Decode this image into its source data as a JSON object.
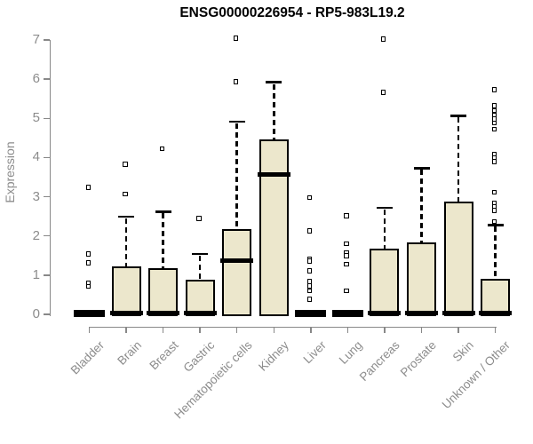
{
  "chart_data": {
    "type": "boxplot",
    "title": "ENSG00000226954 - RP5-983L19.2",
    "ylabel": "Expression",
    "xlabel": "",
    "ylim": [
      0,
      7
    ],
    "yticks": [
      0,
      1,
      2,
      3,
      4,
      5,
      6,
      7
    ],
    "grid": false,
    "legend": "none",
    "colors": {
      "box_fill": "#ECE7CC",
      "box_stroke": "#000000",
      "axis": "#888888",
      "tick_label": "#8c8c8c",
      "title": "#000000"
    },
    "categories": [
      {
        "label": "Bladder",
        "q1": 0,
        "median": 0.03,
        "q3": 0.07,
        "whisker_high": null,
        "outliers": [
          3.24,
          1.54,
          1.31,
          0.79,
          0.71
        ]
      },
      {
        "label": "Brain",
        "q1": 0,
        "median": 0.03,
        "q3": 1.22,
        "whisker_high": 2.49,
        "outliers": [
          3.83,
          3.07
        ]
      },
      {
        "label": "Breast",
        "q1": 0,
        "median": 0.03,
        "q3": 1.17,
        "whisker_high": 2.62,
        "outliers": [
          4.23
        ]
      },
      {
        "label": "Gastric",
        "q1": 0,
        "median": 0.03,
        "q3": 0.89,
        "whisker_high": 1.54,
        "outliers": [
          2.45
        ]
      },
      {
        "label": "Hematopoietic cells",
        "q1": 0,
        "median": 1.38,
        "q3": 2.18,
        "whisker_high": 4.92,
        "outliers": [
          7.05,
          5.93
        ]
      },
      {
        "label": "Kidney",
        "q1": 0,
        "median": 3.57,
        "q3": 4.47,
        "whisker_high": 5.92,
        "outliers": []
      },
      {
        "label": "Liver",
        "q1": 0,
        "median": 0.03,
        "q3": 0.07,
        "whisker_high": null,
        "outliers": [
          2.98,
          2.13,
          1.42,
          1.36,
          1.11,
          0.84,
          0.73,
          0.6,
          0.39
        ]
      },
      {
        "label": "Lung",
        "q1": 0,
        "median": 0.03,
        "q3": 0.07,
        "whisker_high": null,
        "outliers": [
          2.51,
          1.8,
          1.56,
          1.5,
          1.28,
          0.6
        ]
      },
      {
        "label": "Pancreas",
        "q1": 0,
        "median": 0.03,
        "q3": 1.68,
        "whisker_high": 2.72,
        "outliers": [
          7.02,
          5.66
        ]
      },
      {
        "label": "Prostate",
        "q1": 0,
        "median": 0.03,
        "q3": 1.84,
        "whisker_high": 3.73,
        "outliers": []
      },
      {
        "label": "Skin",
        "q1": 0,
        "median": 0.03,
        "q3": 2.87,
        "whisker_high": 5.07,
        "outliers": []
      },
      {
        "label": "Unknown / Other",
        "q1": 0,
        "median": 0.03,
        "q3": 0.9,
        "whisker_high": 2.28,
        "outliers": [
          5.73,
          5.32,
          5.2,
          5.09,
          4.98,
          4.88,
          4.72,
          4.09,
          4.0,
          3.9,
          3.12,
          2.83,
          2.75,
          2.65,
          2.37
        ]
      }
    ]
  }
}
